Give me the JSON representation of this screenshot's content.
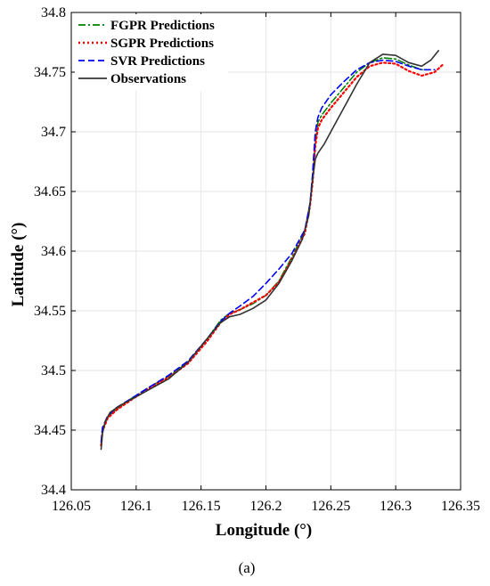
{
  "chart_data": {
    "type": "line",
    "xlabel": "Longitude (°)",
    "ylabel": "Latitude (°)",
    "xlim": [
      126.05,
      126.35
    ],
    "ylim": [
      34.4,
      34.8
    ],
    "xticks": [
      126.05,
      126.1,
      126.15,
      126.2,
      126.25,
      126.3,
      126.35
    ],
    "xtick_labels": [
      "126.05",
      "126.1",
      "126.15",
      "126.2",
      "126.25",
      "126.3",
      "126.35"
    ],
    "yticks": [
      34.4,
      34.45,
      34.5,
      34.55,
      34.6,
      34.65,
      34.7,
      34.75,
      34.8
    ],
    "ytick_labels": [
      "34.4",
      "34.45",
      "34.5",
      "34.55",
      "34.6",
      "34.65",
      "34.7",
      "34.75",
      "34.8"
    ],
    "grid": true,
    "legend_position": "top-left",
    "series": [
      {
        "name": "FGPR Predictions",
        "color": "#008000",
        "dash": "dashdot",
        "x": [
          126.073,
          126.074,
          126.078,
          126.085,
          126.097,
          126.11,
          126.125,
          126.14,
          126.155,
          126.165,
          126.172,
          126.18,
          126.19,
          126.2,
          126.21,
          126.22,
          126.23,
          126.234,
          126.236,
          126.237,
          126.238,
          126.24,
          126.243,
          126.25,
          126.26,
          126.27,
          126.28,
          126.29,
          126.3,
          126.31,
          126.32,
          126.325
        ],
        "y": [
          34.437,
          34.45,
          34.461,
          34.468,
          34.477,
          34.486,
          34.495,
          34.507,
          34.527,
          34.542,
          34.548,
          34.551,
          34.556,
          34.563,
          34.575,
          34.595,
          34.617,
          34.64,
          34.66,
          34.675,
          34.692,
          34.708,
          34.714,
          34.724,
          34.737,
          34.75,
          34.758,
          34.762,
          34.761,
          34.756,
          34.752,
          34.752
        ]
      },
      {
        "name": "SGPR Predictions",
        "color": "#ff0000",
        "dash": "dotted",
        "x": [
          126.073,
          126.074,
          126.078,
          126.085,
          126.097,
          126.11,
          126.125,
          126.14,
          126.155,
          126.165,
          126.172,
          126.18,
          126.19,
          126.2,
          126.21,
          126.22,
          126.23,
          126.234,
          126.236,
          126.237,
          126.238,
          126.24,
          126.243,
          126.25,
          126.26,
          126.27,
          126.28,
          126.29,
          126.3,
          126.31,
          126.32,
          126.33,
          126.337
        ],
        "y": [
          34.437,
          34.449,
          34.46,
          34.467,
          34.476,
          34.485,
          34.494,
          34.506,
          34.525,
          34.54,
          34.547,
          34.551,
          34.557,
          34.563,
          34.574,
          34.593,
          34.615,
          34.638,
          34.658,
          34.672,
          34.688,
          34.703,
          34.71,
          34.72,
          34.733,
          34.746,
          34.755,
          34.758,
          34.757,
          34.751,
          34.747,
          34.75,
          34.757
        ]
      },
      {
        "name": "SVR Predictions",
        "color": "#0000ff",
        "dash": "dashed",
        "x": [
          126.073,
          126.074,
          126.078,
          126.085,
          126.097,
          126.11,
          126.125,
          126.14,
          126.155,
          126.165,
          126.172,
          126.18,
          126.19,
          126.2,
          126.21,
          126.22,
          126.23,
          126.234,
          126.236,
          126.237,
          126.238,
          126.24,
          126.243,
          126.25,
          126.26,
          126.27,
          126.28,
          126.29,
          126.3,
          126.31,
          126.32,
          126.33
        ],
        "y": [
          34.44,
          34.452,
          34.462,
          34.469,
          34.477,
          34.486,
          34.496,
          34.508,
          34.527,
          34.541,
          34.548,
          34.554,
          34.562,
          34.573,
          34.585,
          34.598,
          34.618,
          34.64,
          34.665,
          34.683,
          34.7,
          34.712,
          34.72,
          34.731,
          34.742,
          34.752,
          34.758,
          34.76,
          34.759,
          34.755,
          34.752,
          34.752
        ]
      },
      {
        "name": "Observations",
        "color": "#333333",
        "dash": "solid",
        "x": [
          126.073,
          126.074,
          126.076,
          126.08,
          126.088,
          126.1,
          126.11,
          126.125,
          126.14,
          126.155,
          126.165,
          126.172,
          126.18,
          126.19,
          126.2,
          126.21,
          126.22,
          126.228,
          126.233,
          126.236,
          126.238,
          126.24,
          126.245,
          126.25,
          126.26,
          126.27,
          126.28,
          126.29,
          126.3,
          126.31,
          126.32,
          126.327,
          126.333
        ],
        "y": [
          34.434,
          34.447,
          34.457,
          34.465,
          34.471,
          34.478,
          34.484,
          34.493,
          34.507,
          34.527,
          34.54,
          34.545,
          34.547,
          34.552,
          34.559,
          34.573,
          34.592,
          34.61,
          34.63,
          34.66,
          34.677,
          34.682,
          34.69,
          34.7,
          34.72,
          34.74,
          34.758,
          34.765,
          34.764,
          34.758,
          34.755,
          34.76,
          34.768
        ]
      }
    ]
  },
  "caption": "(a)"
}
